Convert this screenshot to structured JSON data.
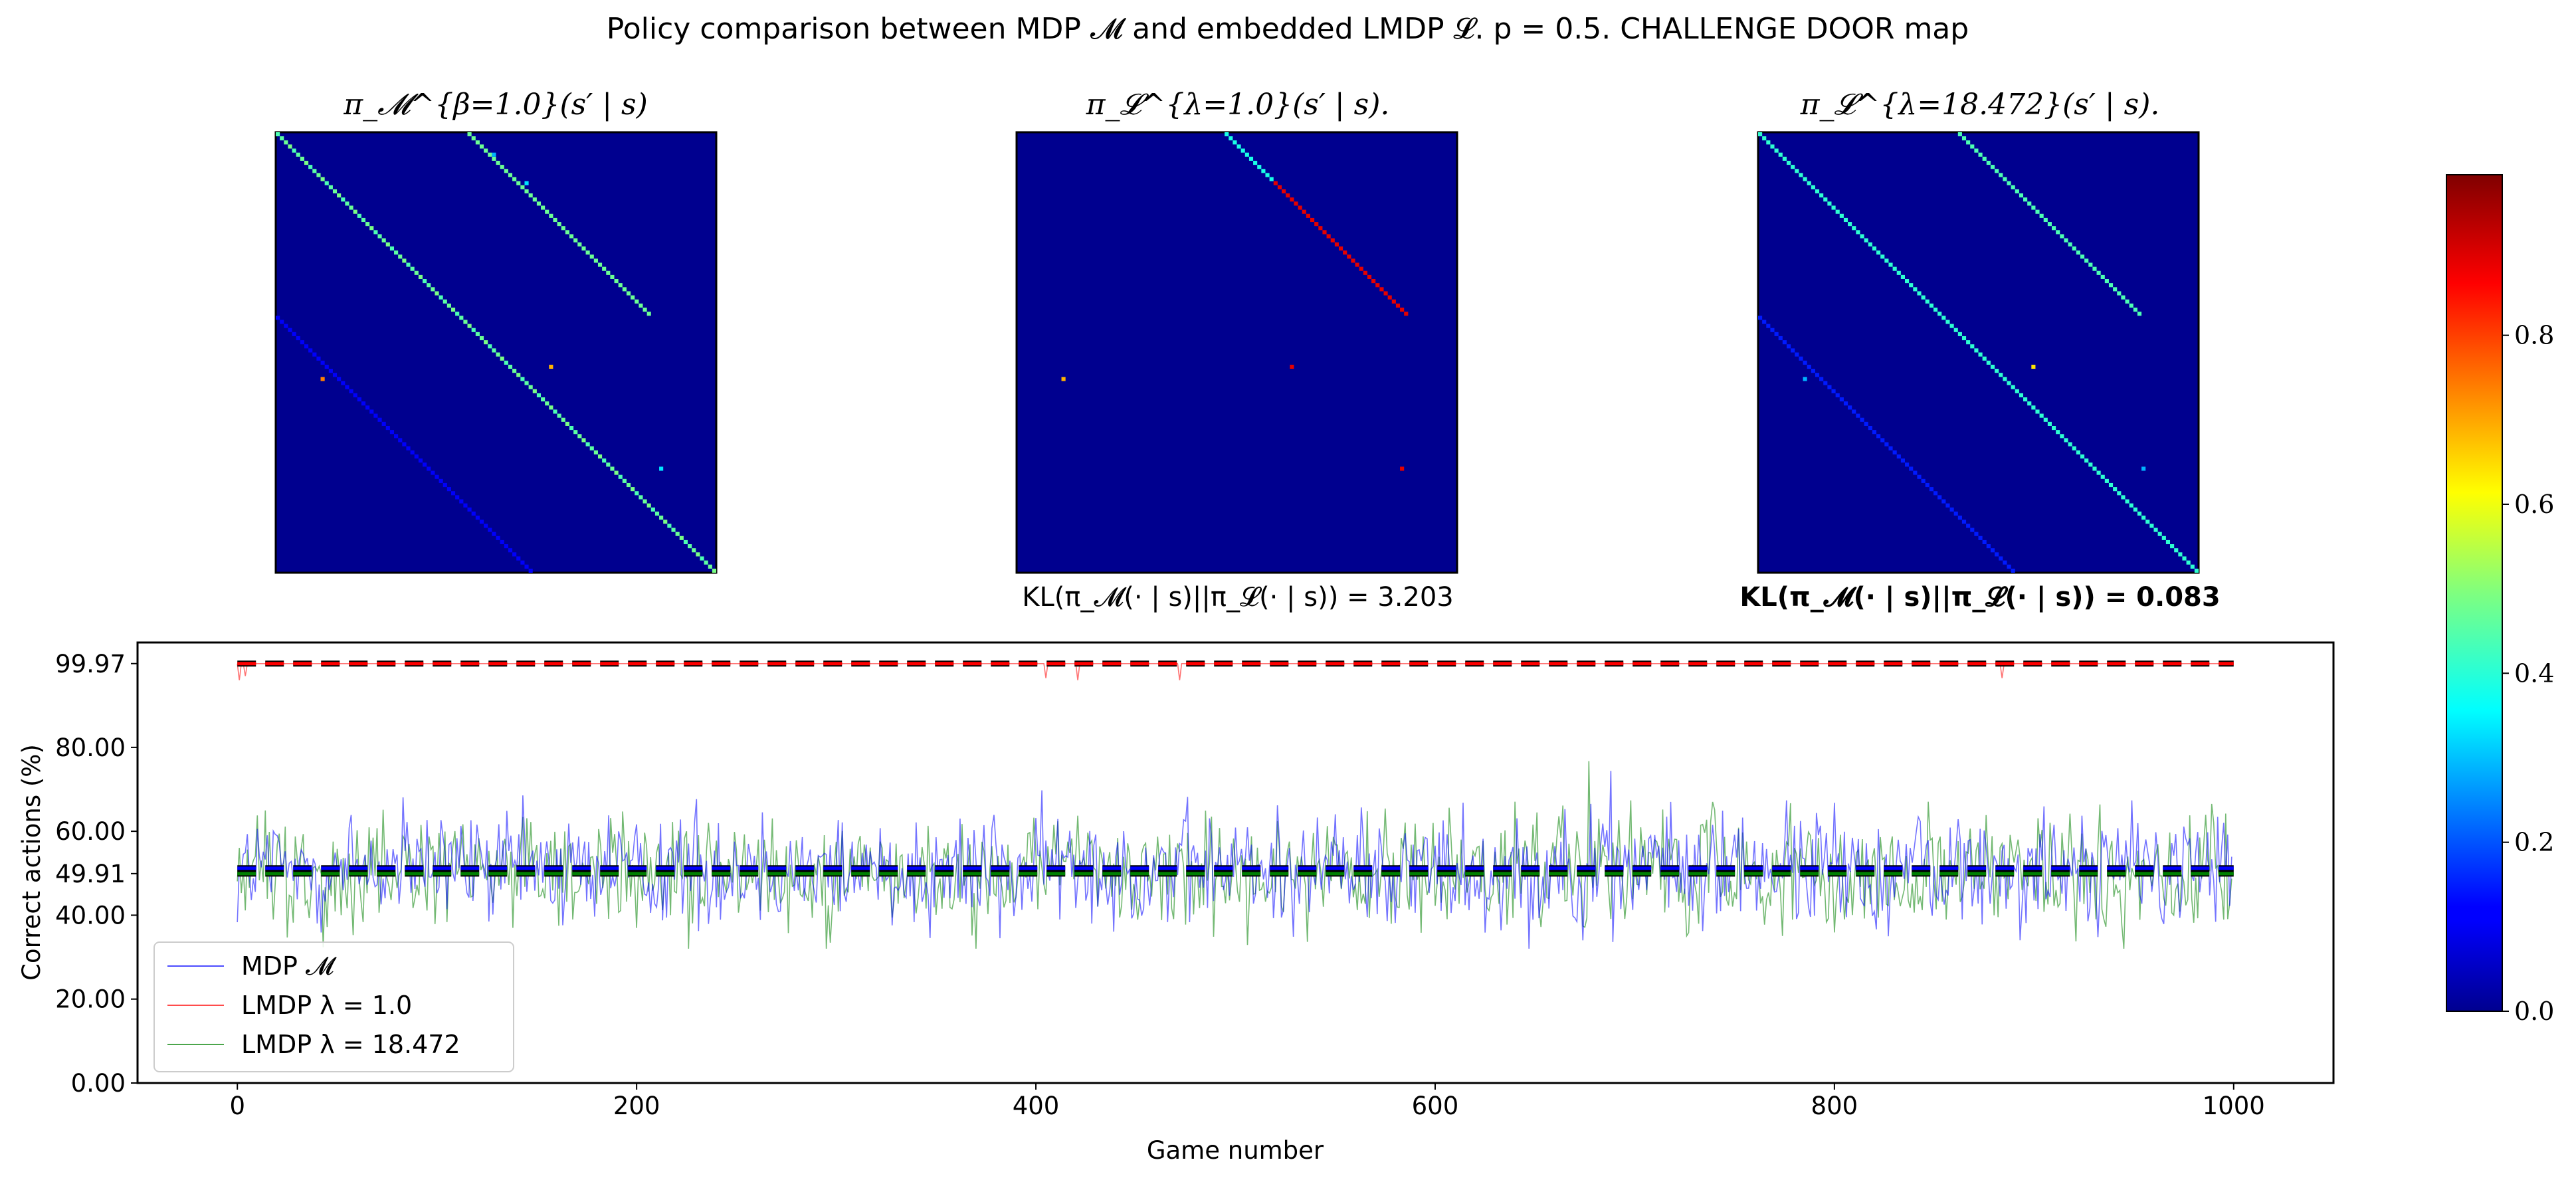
{
  "figure": {
    "title": "Policy comparison between MDP 𝓜 and embedded LMDP 𝓛. p = 0.5. CHALLENGE DOOR map"
  },
  "chart_data": [
    {
      "type": "heatmap",
      "title": "π_𝓜^{β=1.0}(s′ | s)",
      "n_states": 108,
      "grid": false,
      "diagonals": [
        {
          "offset": 0,
          "value": 0.45,
          "rows": [
            0,
            108
          ]
        },
        {
          "offset": 47,
          "value": 0.48,
          "rows": [
            0,
            45
          ]
        },
        {
          "offset": -45,
          "value": 0.12,
          "rows": [
            45,
            108
          ]
        }
      ],
      "points": [
        {
          "row": 5,
          "col": 53,
          "value": 0.3
        },
        {
          "row": 12,
          "col": 61,
          "value": 0.35
        },
        {
          "row": 57,
          "col": 67,
          "value": 0.7
        },
        {
          "row": 60,
          "col": 11,
          "value": 0.75
        },
        {
          "row": 82,
          "col": 94,
          "value": 0.35
        }
      ]
    },
    {
      "type": "heatmap",
      "title": "π_𝓛^{λ=1.0}(s′ | s).",
      "subtitle": "KL(π_𝓜(· | s)||π_𝓛(· | s)) = 3.203",
      "n_states": 108,
      "grid": false,
      "diagonals": [
        {
          "offset": 51,
          "value": 0.4,
          "rows": [
            0,
            12
          ]
        },
        {
          "offset": 51,
          "value": 0.9,
          "rows": [
            12,
            45
          ]
        }
      ],
      "points": [
        {
          "row": 60,
          "col": 11,
          "value": 0.7
        },
        {
          "row": 57,
          "col": 67,
          "value": 0.9
        },
        {
          "row": 82,
          "col": 94,
          "value": 0.9
        }
      ]
    },
    {
      "type": "heatmap",
      "title": "π_𝓛^{λ=18.472}(s′ | s).",
      "subtitle": "KL(π_𝓜(· | s)||π_𝓛(· | s)) = 0.083",
      "n_states": 108,
      "grid": false,
      "diagonals": [
        {
          "offset": 0,
          "value": 0.42,
          "rows": [
            0,
            108
          ]
        },
        {
          "offset": 49,
          "value": 0.45,
          "rows": [
            0,
            45
          ]
        },
        {
          "offset": -45,
          "value": 0.15,
          "rows": [
            45,
            108
          ]
        }
      ],
      "points": [
        {
          "row": 57,
          "col": 67,
          "value": 0.65
        },
        {
          "row": 60,
          "col": 11,
          "value": 0.3
        },
        {
          "row": 82,
          "col": 94,
          "value": 0.3
        }
      ]
    },
    {
      "type": "line",
      "title": "",
      "xlabel": "Game number",
      "ylabel": "Correct actions (%)",
      "xlim": [
        -50,
        1050
      ],
      "ylim": [
        0,
        105
      ],
      "xticks": [
        0,
        200,
        400,
        600,
        800,
        1000
      ],
      "yticks": [
        0.0,
        20.0,
        40.0,
        49.91,
        60.0,
        80.0,
        99.97
      ],
      "ytick_labels": [
        "0.00",
        "20.00",
        "40.00",
        "49.91",
        "60.00",
        "80.00",
        "99.97"
      ],
      "legend_position": "lower-left",
      "series": [
        {
          "name": "MDP 𝓜",
          "color": "#0000ff",
          "mean": 51.2,
          "spread": 7,
          "min": 30,
          "max": 81,
          "n": 1000
        },
        {
          "name": "LMDP λ = 1.0",
          "color": "#ff0000",
          "mean": 99.97,
          "dips": [
            [
              1,
              96
            ],
            [
              4,
              97
            ],
            [
              405,
              96.5
            ],
            [
              421,
              96
            ],
            [
              472,
              96
            ],
            [
              884,
              96.5
            ]
          ],
          "n": 1000
        },
        {
          "name": "LMDP λ = 18.472",
          "color": "#008000",
          "mean": 49.91,
          "spread": 7,
          "min": 32,
          "max": 78,
          "n": 1000
        }
      ],
      "reference_lines": [
        {
          "y": 99.97,
          "color": "#ff0000",
          "style": "dashed"
        },
        {
          "y": 51.2,
          "color": "#0000ff",
          "style": "dashed"
        },
        {
          "y": 49.91,
          "color": "#008000",
          "style": "dashed"
        }
      ]
    }
  ],
  "colorbar": {
    "cmap": "jet",
    "range": [
      0.0,
      0.99
    ],
    "ticks": [
      0.0,
      0.2,
      0.4,
      0.6,
      0.8
    ],
    "tick_labels": [
      "0.0",
      "0.2",
      "0.4",
      "0.6",
      "0.8"
    ]
  },
  "colors": {
    "heatmap_background": "#00008f",
    "mdp": "#0000ff",
    "lmdp1": "#ff0000",
    "lmdp18": "#008000"
  }
}
